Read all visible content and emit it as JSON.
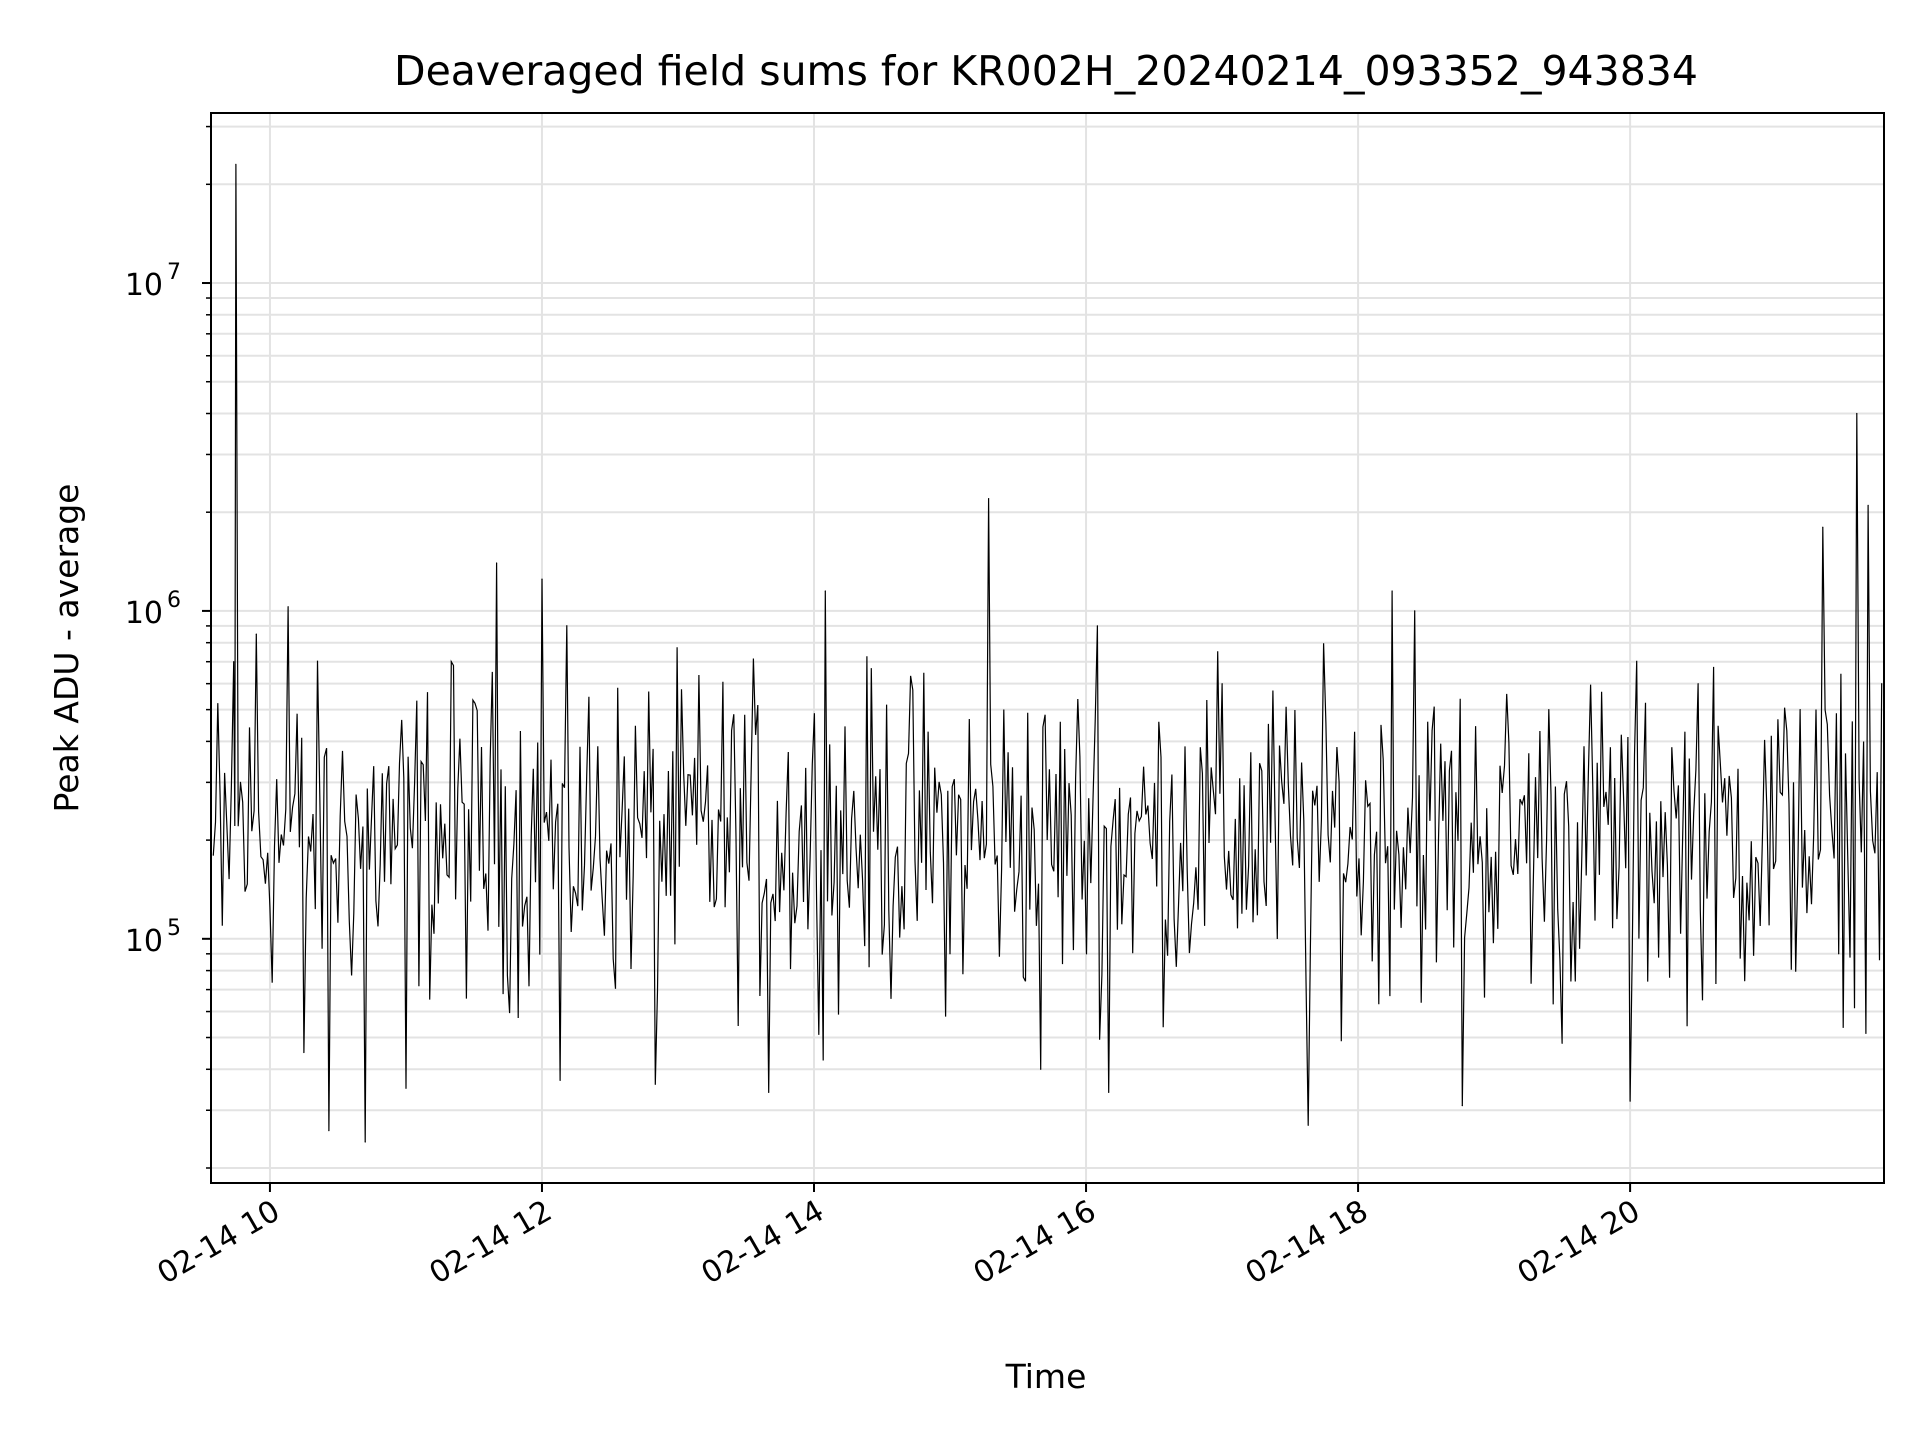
{
  "chart_data": {
    "type": "line",
    "title": "Deaveraged field sums for KR002H_20240214_093352_943834",
    "xlabel": "Time",
    "ylabel": "Peak ADU - average",
    "yscale": "log",
    "grid": true,
    "xlim": [
      "2024-02-14 09:34",
      "2024-02-14 21:52"
    ],
    "ylim": [
      18000,
      33000000
    ],
    "x_ticks": [
      {
        "value": "2024-02-14 10:00",
        "label": "02-14 10"
      },
      {
        "value": "2024-02-14 12:00",
        "label": "02-14 12"
      },
      {
        "value": "2024-02-14 14:00",
        "label": "02-14 14"
      },
      {
        "value": "2024-02-14 16:00",
        "label": "02-14 16"
      },
      {
        "value": "2024-02-14 18:00",
        "label": "02-14 18"
      },
      {
        "value": "2024-02-14 20:00",
        "label": "02-14 20"
      }
    ],
    "y_ticks": [
      {
        "value": 100000,
        "base": "10",
        "exp": "5"
      },
      {
        "value": 1000000,
        "base": "10",
        "exp": "6"
      },
      {
        "value": 10000000,
        "base": "10",
        "exp": "7"
      }
    ],
    "series": [
      {
        "color": "#000000",
        "typical_range": [
          60000,
          700000
        ],
        "points": [
          {
            "x": "2024-02-14 09:35",
            "y": 180000
          },
          {
            "x": "2024-02-14 09:39",
            "y": 110000
          },
          {
            "x": "2024-02-14 09:44",
            "y": 700000
          },
          {
            "x": "2024-02-14 09:45",
            "y": 23000000
          },
          {
            "x": "2024-02-14 09:47",
            "y": 300000
          },
          {
            "x": "2024-02-14 09:54",
            "y": 850000
          },
          {
            "x": "2024-02-14 10:08",
            "y": 1030000
          },
          {
            "x": "2024-02-14 10:15",
            "y": 45000
          },
          {
            "x": "2024-02-14 10:26",
            "y": 26000
          },
          {
            "x": "2024-02-14 10:42",
            "y": 24000
          },
          {
            "x": "2024-02-14 11:00",
            "y": 35000
          },
          {
            "x": "2024-02-14 11:20",
            "y": 700000
          },
          {
            "x": "2024-02-14 11:40",
            "y": 1400000
          },
          {
            "x": "2024-02-14 12:00",
            "y": 1250000
          },
          {
            "x": "2024-02-14 12:08",
            "y": 37000
          },
          {
            "x": "2024-02-14 12:50",
            "y": 36000
          },
          {
            "x": "2024-02-14 13:40",
            "y": 34000
          },
          {
            "x": "2024-02-14 14:05",
            "y": 1150000
          },
          {
            "x": "2024-02-14 15:00",
            "y": 90000
          },
          {
            "x": "2024-02-14 15:17",
            "y": 2200000
          },
          {
            "x": "2024-02-14 15:40",
            "y": 40000
          },
          {
            "x": "2024-02-14 16:05",
            "y": 900000
          },
          {
            "x": "2024-02-14 16:10",
            "y": 34000
          },
          {
            "x": "2024-02-14 17:00",
            "y": 600000
          },
          {
            "x": "2024-02-14 17:38",
            "y": 27000
          },
          {
            "x": "2024-02-14 18:15",
            "y": 1150000
          },
          {
            "x": "2024-02-14 18:25",
            "y": 1000000
          },
          {
            "x": "2024-02-14 18:46",
            "y": 31000
          },
          {
            "x": "2024-02-14 19:30",
            "y": 48000
          },
          {
            "x": "2024-02-14 20:00",
            "y": 32000
          },
          {
            "x": "2024-02-14 20:30",
            "y": 600000
          },
          {
            "x": "2024-02-14 21:15",
            "y": 500000
          },
          {
            "x": "2024-02-14 21:25",
            "y": 1800000
          },
          {
            "x": "2024-02-14 21:32",
            "y": 90000
          },
          {
            "x": "2024-02-14 21:40",
            "y": 4000000
          },
          {
            "x": "2024-02-14 21:45",
            "y": 2100000
          },
          {
            "x": "2024-02-14 21:51",
            "y": 600000
          }
        ]
      }
    ]
  }
}
